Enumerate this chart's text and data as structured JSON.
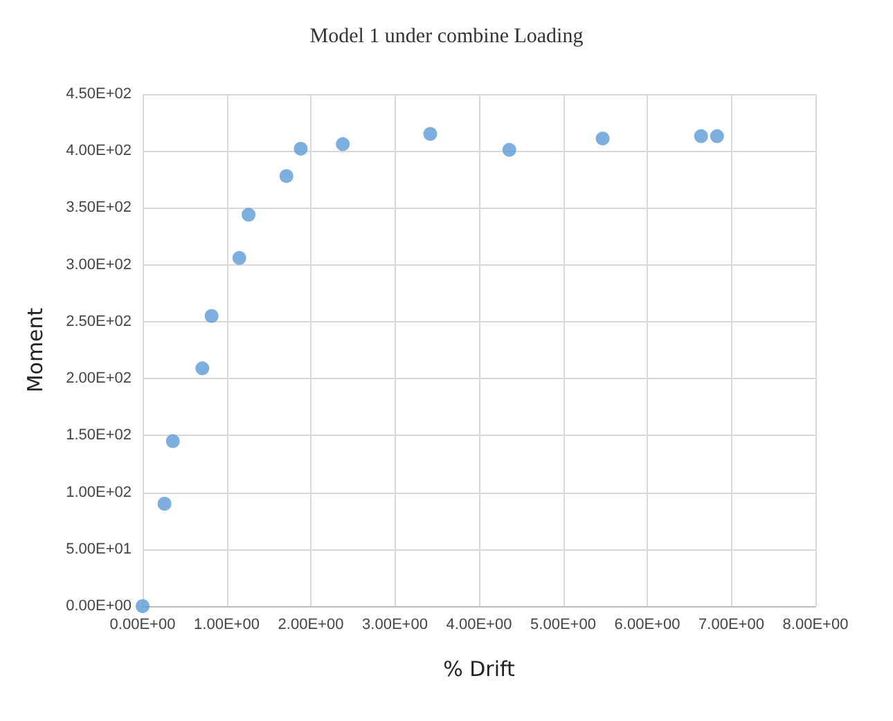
{
  "chart_data": {
    "type": "scatter",
    "title": "Model 1 under combine Loading",
    "xlabel": "% Drift",
    "ylabel": "Moment",
    "x": [
      0.0,
      0.26,
      0.36,
      0.71,
      0.82,
      1.15,
      1.26,
      1.71,
      1.88,
      2.38,
      3.42,
      4.36,
      5.47,
      6.64,
      6.83
    ],
    "series": [
      {
        "color": "#5b9bd5",
        "values": [
          0,
          90,
          145,
          209,
          255,
          306,
          344,
          378,
          402,
          406,
          415,
          401,
          411,
          413,
          413
        ]
      }
    ],
    "xlim": [
      0,
      8
    ],
    "ylim": [
      0,
      450
    ],
    "xticks": [
      {
        "value": 0,
        "label": "0.00E+00"
      },
      {
        "value": 1,
        "label": "1.00E+00"
      },
      {
        "value": 2,
        "label": "2.00E+00"
      },
      {
        "value": 3,
        "label": "3.00E+00"
      },
      {
        "value": 4,
        "label": "4.00E+00"
      },
      {
        "value": 5,
        "label": "5.00E+00"
      },
      {
        "value": 6,
        "label": "6.00E+00"
      },
      {
        "value": 7,
        "label": "7.00E+00"
      },
      {
        "value": 8,
        "label": "8.00E+00"
      }
    ],
    "yticks": [
      {
        "value": 0,
        "label": "0.00E+00"
      },
      {
        "value": 50,
        "label": "5.00E+01"
      },
      {
        "value": 100,
        "label": "1.00E+02"
      },
      {
        "value": 150,
        "label": "1.50E+02"
      },
      {
        "value": 200,
        "label": "2.00E+02"
      },
      {
        "value": 250,
        "label": "2.50E+02"
      },
      {
        "value": 300,
        "label": "3.00E+02"
      },
      {
        "value": 350,
        "label": "3.50E+02"
      },
      {
        "value": 400,
        "label": "4.00E+02"
      },
      {
        "value": 450,
        "label": "4.50E+02"
      }
    ],
    "grid": true,
    "marker": "circle"
  }
}
